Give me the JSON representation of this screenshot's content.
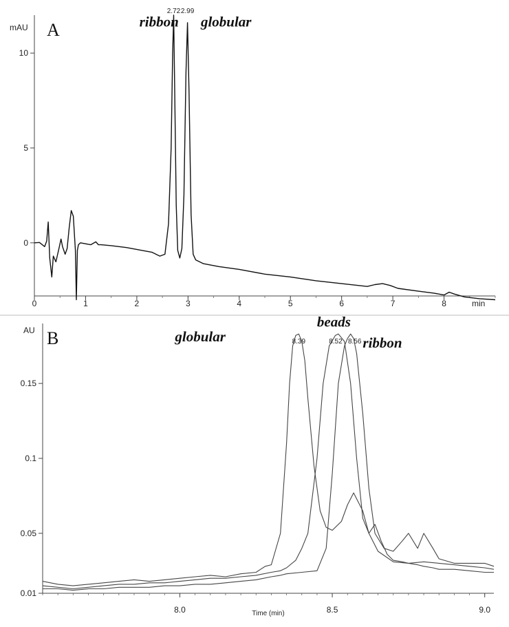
{
  "chart_data": [
    {
      "type": "line",
      "panel_label": "A",
      "ylabel": "mAU",
      "xlabel": "min",
      "xlim": [
        0,
        9.0
      ],
      "ylim": [
        -2.8,
        12.0
      ],
      "x_ticks": [
        0,
        1,
        2,
        3,
        4,
        5,
        6,
        7,
        8
      ],
      "y_ticks": [
        0,
        5,
        10
      ],
      "peak_labels": [
        {
          "x": 2.72,
          "text": "2.72"
        },
        {
          "x": 2.99,
          "text": "2.99"
        }
      ],
      "annotations": [
        {
          "text": "ribbon",
          "x": 2.05,
          "y": 11.4
        },
        {
          "text": "globular",
          "x": 3.25,
          "y": 11.4
        }
      ],
      "series": [
        {
          "x": [
            0,
            0.1,
            0.2,
            0.24,
            0.27,
            0.3,
            0.34,
            0.37,
            0.42,
            0.48,
            0.52,
            0.55,
            0.6,
            0.64,
            0.68,
            0.72,
            0.76,
            0.8,
            0.82,
            0.84,
            0.86,
            0.9,
            1.0,
            1.1,
            1.2,
            1.25,
            1.3,
            1.5,
            1.8,
            2.1,
            2.3,
            2.45,
            2.55,
            2.62,
            2.67,
            2.7,
            2.72,
            2.74,
            2.77,
            2.8,
            2.84,
            2.88,
            2.92,
            2.96,
            2.99,
            3.02,
            3.06,
            3.1,
            3.15,
            3.3,
            3.6,
            4.0,
            4.5,
            5.0,
            5.5,
            6.0,
            6.5,
            6.65,
            6.8,
            6.95,
            7.1,
            7.5,
            7.8,
            8.0,
            8.1,
            8.2,
            8.4,
            8.7,
            9.0
          ],
          "y": [
            0,
            0.02,
            -0.2,
            0.1,
            1.1,
            -0.8,
            -1.8,
            -0.7,
            -1.0,
            -0.3,
            0.2,
            -0.2,
            -0.6,
            -0.3,
            0.8,
            1.7,
            1.4,
            -0.4,
            -3.0,
            -0.4,
            -0.1,
            0,
            -0.05,
            -0.1,
            0.05,
            -0.1,
            -0.1,
            -0.15,
            -0.25,
            -0.4,
            -0.5,
            -0.7,
            -0.6,
            1.0,
            5.0,
            10.0,
            12.0,
            8.0,
            2.0,
            -0.4,
            -0.8,
            -0.3,
            2.5,
            9.0,
            11.6,
            8.0,
            1.5,
            -0.6,
            -0.9,
            -1.1,
            -1.25,
            -1.4,
            -1.65,
            -1.8,
            -2.0,
            -2.15,
            -2.3,
            -2.2,
            -2.15,
            -2.25,
            -2.4,
            -2.55,
            -2.65,
            -2.75,
            -2.6,
            -2.7,
            -2.85,
            -2.95,
            -3.0
          ]
        }
      ]
    },
    {
      "type": "line",
      "panel_label": "B",
      "ylabel": "AU",
      "xlabel": "Time (min)",
      "xlim": [
        7.55,
        9.03
      ],
      "ylim": [
        0.01,
        0.19
      ],
      "x_ticks": [
        8.0,
        8.5,
        9.0
      ],
      "x_tick_labels": [
        "8.0",
        "8.5",
        "9.0"
      ],
      "y_ticks": [
        0.01,
        0.05,
        0.1,
        0.15
      ],
      "y_tick_labels": [
        "0.01",
        "0.05",
        "0.1",
        "0.15"
      ],
      "peak_labels": [
        {
          "x": 8.39,
          "text": "8.39"
        },
        {
          "x": 8.52,
          "text": "8.52"
        },
        {
          "x": 8.56,
          "text": "8.56"
        }
      ],
      "annotations": [
        {
          "text": "globular",
          "x": 8.15,
          "y": 0.178
        },
        {
          "text": "beads",
          "x": 8.45,
          "y": 0.188
        },
        {
          "text": "ribbon",
          "x": 8.6,
          "y": 0.174
        }
      ],
      "series": [
        {
          "x": [
            7.55,
            7.6,
            7.65,
            7.7,
            7.75,
            7.8,
            7.85,
            7.9,
            7.95,
            8.0,
            8.05,
            8.1,
            8.15,
            8.2,
            8.25,
            8.28,
            8.3,
            8.33,
            8.35,
            8.36,
            8.37,
            8.38,
            8.39,
            8.4,
            8.41,
            8.42,
            8.44,
            8.46,
            8.48,
            8.5,
            8.53,
            8.55,
            8.57,
            8.6,
            8.62,
            8.65,
            8.7,
            8.75,
            8.8,
            8.85,
            8.9,
            8.95,
            9.0,
            9.03
          ],
          "y": [
            0.018,
            0.016,
            0.015,
            0.016,
            0.017,
            0.018,
            0.019,
            0.018,
            0.019,
            0.02,
            0.021,
            0.022,
            0.021,
            0.023,
            0.024,
            0.028,
            0.029,
            0.05,
            0.11,
            0.15,
            0.175,
            0.182,
            0.183,
            0.178,
            0.165,
            0.14,
            0.095,
            0.065,
            0.054,
            0.052,
            0.058,
            0.069,
            0.077,
            0.065,
            0.05,
            0.038,
            0.031,
            0.03,
            0.031,
            0.03,
            0.029,
            0.028,
            0.027,
            0.026
          ]
        },
        {
          "x": [
            7.55,
            7.6,
            7.65,
            7.7,
            7.75,
            7.8,
            7.85,
            7.9,
            7.95,
            8.0,
            8.05,
            8.1,
            8.15,
            8.2,
            8.25,
            8.3,
            8.33,
            8.35,
            8.38,
            8.4,
            8.42,
            8.45,
            8.47,
            8.49,
            8.51,
            8.52,
            8.54,
            8.56,
            8.58,
            8.6,
            8.62,
            8.64,
            8.66,
            8.68,
            8.7,
            8.73,
            8.75,
            8.78,
            8.8,
            8.83,
            8.85,
            8.9,
            8.95,
            9.0,
            9.03
          ],
          "y": [
            0.015,
            0.014,
            0.013,
            0.014,
            0.015,
            0.016,
            0.016,
            0.017,
            0.017,
            0.018,
            0.019,
            0.02,
            0.02,
            0.021,
            0.022,
            0.024,
            0.025,
            0.027,
            0.032,
            0.04,
            0.05,
            0.1,
            0.15,
            0.175,
            0.182,
            0.183,
            0.178,
            0.15,
            0.1,
            0.06,
            0.05,
            0.056,
            0.045,
            0.036,
            0.032,
            0.031,
            0.03,
            0.029,
            0.028,
            0.027,
            0.026,
            0.026,
            0.025,
            0.024,
            0.024
          ]
        },
        {
          "x": [
            7.55,
            7.6,
            7.65,
            7.7,
            7.75,
            7.8,
            7.85,
            7.9,
            7.95,
            8.0,
            8.05,
            8.1,
            8.15,
            8.2,
            8.25,
            8.3,
            8.33,
            8.35,
            8.4,
            8.45,
            8.48,
            8.5,
            8.52,
            8.54,
            8.55,
            8.56,
            8.57,
            8.58,
            8.6,
            8.62,
            8.64,
            8.67,
            8.7,
            8.73,
            8.75,
            8.78,
            8.8,
            8.83,
            8.85,
            8.9,
            8.95,
            9.0,
            9.03
          ],
          "y": [
            0.013,
            0.013,
            0.012,
            0.013,
            0.013,
            0.014,
            0.014,
            0.014,
            0.015,
            0.015,
            0.016,
            0.016,
            0.017,
            0.018,
            0.019,
            0.021,
            0.022,
            0.023,
            0.024,
            0.025,
            0.04,
            0.09,
            0.15,
            0.175,
            0.18,
            0.183,
            0.18,
            0.17,
            0.13,
            0.08,
            0.05,
            0.04,
            0.038,
            0.045,
            0.05,
            0.04,
            0.05,
            0.04,
            0.033,
            0.03,
            0.03,
            0.03,
            0.028
          ]
        }
      ]
    }
  ]
}
